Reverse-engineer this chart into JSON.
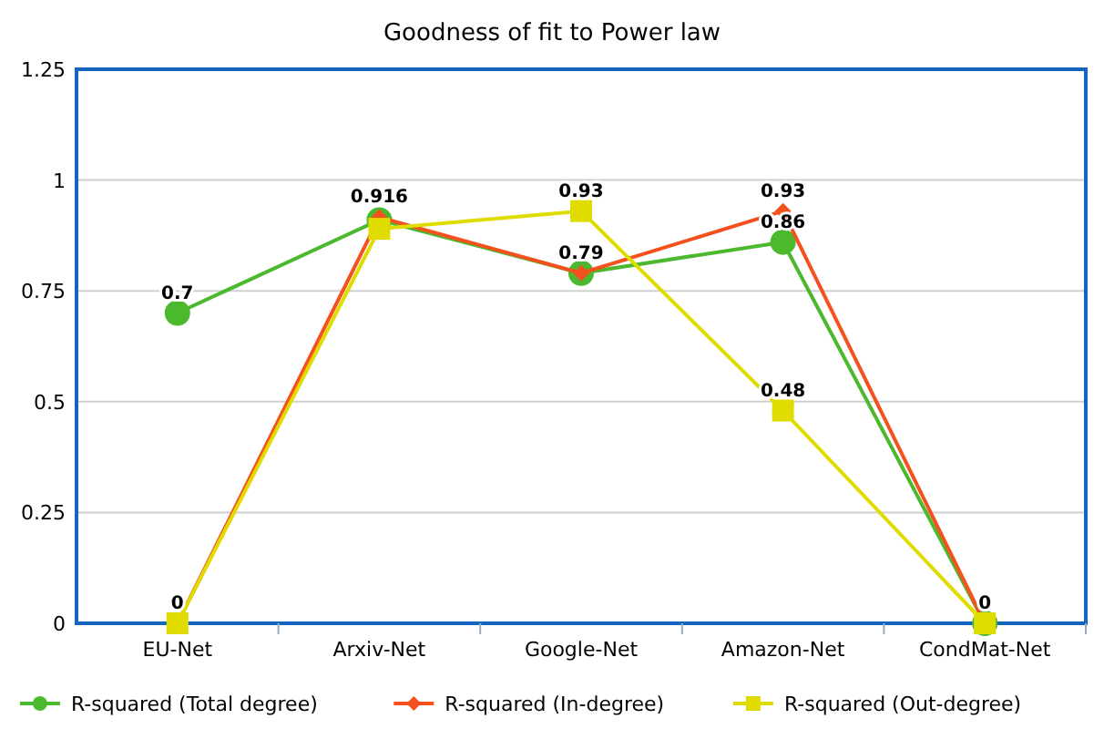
{
  "chart_data": {
    "type": "line",
    "title": "Goodness of fit to Power law",
    "categories": [
      "EU-Net",
      "Arxiv-Net",
      "Google-Net",
      "Amazon-Net",
      "CondMat-Net"
    ],
    "series": [
      {
        "name": "R-squared (Total degree)",
        "color": "#4cb82e",
        "marker": "circle",
        "values": [
          0.7,
          0.91,
          0.79,
          0.86,
          0
        ],
        "value_labels": [
          "0.7",
          null,
          null,
          "0.86",
          null
        ]
      },
      {
        "name": "R-squared (In-degree)",
        "color": "#f4511e",
        "marker": "diamond",
        "values": [
          0,
          0.916,
          0.79,
          0.93,
          0
        ],
        "value_labels": [
          null,
          "0.916",
          "0.79",
          "0.93",
          null
        ]
      },
      {
        "name": "R-squared (Out-degree)",
        "color": "#e0dc00",
        "marker": "square",
        "values": [
          0,
          0.89,
          0.93,
          0.48,
          0
        ],
        "value_labels": [
          "0",
          null,
          "0.93",
          "0.48",
          "0"
        ]
      }
    ],
    "ylim": [
      0,
      1.25
    ],
    "yticks": [
      0,
      0.25,
      0.5,
      0.75,
      1,
      1.25
    ],
    "grid": "y",
    "legend": "bottom",
    "line_style": "solid"
  }
}
